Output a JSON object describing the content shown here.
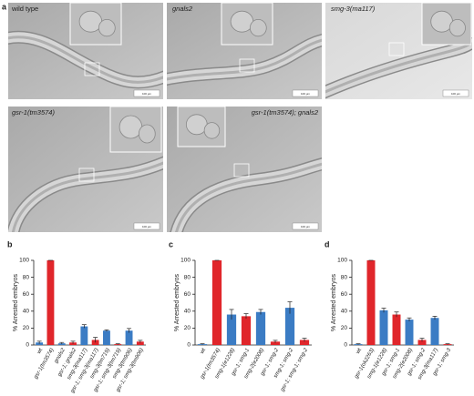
{
  "figure": {
    "panel": "a",
    "images": [
      {
        "label": "wild type",
        "scale_bar": "100 µm"
      },
      {
        "label": "gnals2",
        "scale_bar": "100 µm"
      },
      {
        "label": "smg-3(ma117)",
        "scale_bar": "100 µm"
      },
      {
        "label": "gsr-1(tm3574)",
        "scale_bar": "100 µm"
      },
      {
        "label": "gsr-1(tm3574); gnals2",
        "scale_bar": "100 µm"
      }
    ]
  },
  "chart_data": [
    {
      "type": "bar",
      "panel": "b",
      "y_label": "% Arrested embryos",
      "categories": [
        "wt",
        "gsr-1(tm3574)",
        "gnals2",
        "gsr-1; gnals2",
        "smg-3(ma117)",
        "gsr-1; smg-3(ma117)",
        "smg-3(tm719)",
        "gsr-1; smg-3(tm719)",
        "smg-3(tm906)",
        "gsr-1; smg-3(tm906)"
      ],
      "values": [
        3,
        100,
        2,
        3,
        22,
        6,
        17,
        1,
        17,
        4
      ],
      "errors": [
        1.5,
        0,
        1,
        1.5,
        2,
        3,
        1,
        0.5,
        2.5,
        1.5
      ],
      "colors": [
        "#3b7cc4",
        "#e0262b",
        "#3b7cc4",
        "#e0262b",
        "#3b7cc4",
        "#e0262b",
        "#3b7cc4",
        "#e0262b",
        "#3b7cc4",
        "#e0262b"
      ],
      "ylim": [
        0,
        100
      ],
      "yticks": [
        0,
        20,
        40,
        60,
        80,
        100
      ]
    },
    {
      "type": "bar",
      "panel": "c",
      "y_label": "% Arrested embryos",
      "categories": [
        "wt",
        "gsr-1(tm3574)",
        "smg-1(e1228)",
        "gsr-1; smg-1",
        "smg-2(e2008)",
        "gsr-1; smg-2",
        "smg-1; smg-2",
        "gsr-1; smg-1; smg-2"
      ],
      "values": [
        1,
        100,
        36,
        34,
        39,
        4,
        44,
        6
      ],
      "errors": [
        0.5,
        0,
        6,
        3,
        3,
        1.5,
        7,
        2
      ],
      "colors": [
        "#3b7cc4",
        "#e0262b",
        "#3b7cc4",
        "#e0262b",
        "#3b7cc4",
        "#e0262b",
        "#3b7cc4",
        "#e0262b"
      ],
      "ylim": [
        0,
        100
      ],
      "yticks": [
        0,
        20,
        40,
        60,
        80,
        100
      ]
    },
    {
      "type": "bar",
      "panel": "d",
      "y_label": "% Arrested embryos",
      "categories": [
        "wt",
        "gsr-1(ok2263)",
        "smg-1(e1228)",
        "gsr-1; smg-1",
        "smg-2(e2008)",
        "gsr-1; smg-2",
        "smg-3(ma117)",
        "gsr-1; smg-3"
      ],
      "values": [
        1,
        100,
        41,
        36,
        30,
        6,
        32,
        1
      ],
      "errors": [
        0.5,
        0,
        2.5,
        3,
        2,
        2,
        2,
        0.5
      ],
      "colors": [
        "#3b7cc4",
        "#e0262b",
        "#3b7cc4",
        "#e0262b",
        "#3b7cc4",
        "#e0262b",
        "#3b7cc4",
        "#e0262b"
      ],
      "ylim": [
        0,
        100
      ],
      "yticks": [
        0,
        20,
        40,
        60,
        80,
        100
      ]
    }
  ]
}
